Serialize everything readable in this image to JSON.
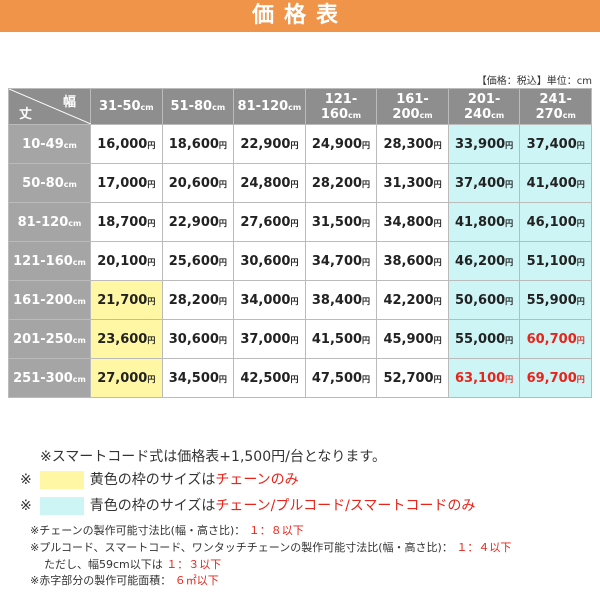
{
  "header": {
    "title": "価格表"
  },
  "unit_note": "【価格：税込】単位：cm",
  "table": {
    "corner": {
      "width": "幅",
      "height": "丈"
    },
    "unit": "cm",
    "currency": "円",
    "columns": [
      "31-50",
      "51-80",
      "81-120",
      "121-160",
      "161-200",
      "201-240",
      "241-270"
    ],
    "rows": [
      {
        "label": "10-49",
        "prices": [
          "16,000",
          "18,600",
          "22,900",
          "24,900",
          "28,300",
          "33,900",
          "37,400"
        ]
      },
      {
        "label": "50-80",
        "prices": [
          "17,000",
          "20,600",
          "24,800",
          "28,200",
          "31,300",
          "37,400",
          "41,400"
        ]
      },
      {
        "label": "81-120",
        "prices": [
          "18,700",
          "22,900",
          "27,600",
          "31,500",
          "34,800",
          "41,800",
          "46,100"
        ]
      },
      {
        "label": "121-160",
        "prices": [
          "20,100",
          "25,600",
          "30,600",
          "34,700",
          "38,600",
          "46,200",
          "51,100"
        ]
      },
      {
        "label": "161-200",
        "prices": [
          "21,700",
          "28,200",
          "34,000",
          "38,400",
          "42,200",
          "50,600",
          "55,900"
        ]
      },
      {
        "label": "201-250",
        "prices": [
          "23,600",
          "30,600",
          "37,000",
          "41,500",
          "45,900",
          "55,000",
          "60,700"
        ]
      },
      {
        "label": "251-300",
        "prices": [
          "27,000",
          "34,500",
          "42,500",
          "47,500",
          "52,700",
          "63,100",
          "69,700"
        ]
      }
    ]
  },
  "notes": {
    "smart_cord": "※スマートコード式は価格表+1,500円/台となります。",
    "yellow": {
      "mark": "※",
      "text": "黄色の枠のサイズは",
      "red": "チェーンのみ"
    },
    "cyan": {
      "mark": "※",
      "text": "青色の枠のサイズは",
      "red": "チェーン/プルコード/スマートコードのみ"
    },
    "small": [
      {
        "text": "※チェーンの製作可能寸法比(幅・高さ比)：",
        "red": "１：８以下"
      },
      {
        "text": "※プルコード、スマートコード、ワンタッチチェーンの製作可能寸法比(幅・高さ比)：",
        "red": "１：４以下"
      },
      {
        "text": "ただし、幅59cm以下は",
        "red": "１：３以下"
      },
      {
        "text": "※赤字部分の製作可能面積：",
        "red": "６㎡以下"
      }
    ]
  }
}
